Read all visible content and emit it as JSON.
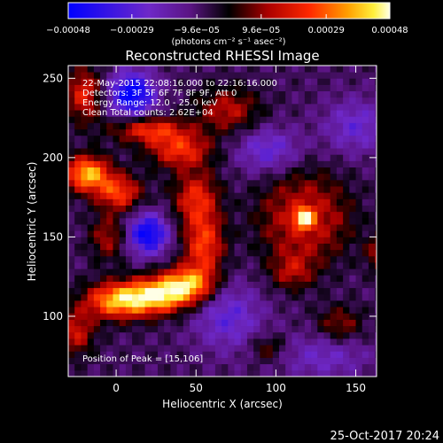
{
  "chart_data": {
    "type": "heatmap",
    "title": "Reconstructed RHESSI Image",
    "xlabel": "Heliocentric X (arcsec)",
    "ylabel": "Heliocentric Y (arcsec)",
    "xlim": [
      -30,
      163
    ],
    "ylim": [
      62,
      258
    ],
    "xticks": [
      0,
      50,
      100,
      150
    ],
    "yticks": [
      100,
      150,
      200,
      250
    ],
    "colorbar": {
      "range": [
        -0.00048,
        0.00048
      ],
      "tick_values": [
        -0.00048,
        -0.00029,
        -9.6e-05,
        9.6e-05,
        0.00029,
        0.00048
      ],
      "tick_labels": [
        "−0.00048",
        "−0.00029",
        "−9.6e−05",
        "9.6e−05",
        "0.00029",
        "0.00048"
      ],
      "units_label": "(photons cm⁻² s⁻¹ asec⁻²)"
    },
    "annotations": {
      "time_range": "22-May-2015 22:08:16.000 to 22:16:16.000",
      "detectors": "Detectors: 3F 5F 6F 7F 8F 9F, Att 0",
      "energy": "Energy Range: 12.0 - 25.0 keV",
      "method": "Clean    Total counts: 2.62E+04",
      "peak": "Position of Peak = [15,106]"
    },
    "features": [
      {
        "x": 118,
        "y": 162,
        "amplitude": 0.00048,
        "sx": 5,
        "sy": 5
      },
      {
        "x": 118,
        "y": 162,
        "amplitude": -0.00022,
        "sx": 10,
        "sy": 10
      },
      {
        "x": 118,
        "y": 162,
        "amplitude": 0.00036,
        "sx": 18,
        "sy": 18
      },
      {
        "x": 110,
        "y": 128,
        "amplitude": 0.00018,
        "sx": 10,
        "sy": 8
      },
      {
        "x": -18,
        "y": 190,
        "amplitude": 0.00046,
        "sx": 10,
        "sy": 8
      },
      {
        "x": 2,
        "y": 178,
        "amplitude": 0.00032,
        "sx": 10,
        "sy": 8
      },
      {
        "x": 0,
        "y": 110,
        "amplitude": 0.00042,
        "sx": 14,
        "sy": 8
      },
      {
        "x": 25,
        "y": 113,
        "amplitude": 0.00044,
        "sx": 14,
        "sy": 8
      },
      {
        "x": 45,
        "y": 120,
        "amplitude": 0.00042,
        "sx": 12,
        "sy": 8
      },
      {
        "x": 55,
        "y": 145,
        "amplitude": 0.00032,
        "sx": 9,
        "sy": 14
      },
      {
        "x": 50,
        "y": 175,
        "amplitude": 0.00028,
        "sx": 10,
        "sy": 12
      },
      {
        "x": 40,
        "y": 205,
        "amplitude": 0.0003,
        "sx": 14,
        "sy": 8
      },
      {
        "x": 20,
        "y": 218,
        "amplitude": 0.0003,
        "sx": 16,
        "sy": 6
      },
      {
        "x": 70,
        "y": 230,
        "amplitude": 0.00022,
        "sx": 14,
        "sy": 10
      },
      {
        "x": -20,
        "y": 240,
        "amplitude": 0.00028,
        "sx": 8,
        "sy": 12
      },
      {
        "x": -5,
        "y": 150,
        "amplitude": 0.0002,
        "sx": 8,
        "sy": 10
      },
      {
        "x": 140,
        "y": 95,
        "amplitude": 0.00018,
        "sx": 10,
        "sy": 8
      },
      {
        "x": 165,
        "y": 140,
        "amplitude": 0.0002,
        "sx": 6,
        "sy": 8
      },
      {
        "x": 95,
        "y": 80,
        "amplitude": 0.00016,
        "sx": 8,
        "sy": 6
      },
      {
        "x": -25,
        "y": 90,
        "amplitude": 0.00024,
        "sx": 8,
        "sy": 10
      },
      {
        "x": 10,
        "y": 240,
        "amplitude": -0.00042,
        "sx": 10,
        "sy": 10
      },
      {
        "x": 20,
        "y": 152,
        "amplitude": -0.0004,
        "sx": 9,
        "sy": 9
      },
      {
        "x": 70,
        "y": 100,
        "amplitude": -0.0002,
        "sx": 15,
        "sy": 15
      },
      {
        "x": 95,
        "y": 205,
        "amplitude": -0.0002,
        "sx": 14,
        "sy": 10
      },
      {
        "x": 150,
        "y": 220,
        "amplitude": -0.00018,
        "sx": 14,
        "sy": 12
      },
      {
        "x": 130,
        "y": 75,
        "amplitude": -0.00015,
        "sx": 20,
        "sy": 10
      }
    ]
  },
  "footer": {
    "date": "25-Oct-2017 20:24"
  }
}
